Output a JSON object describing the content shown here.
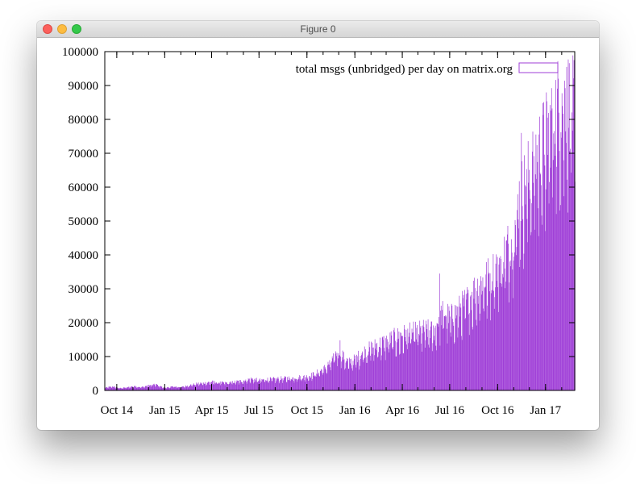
{
  "window": {
    "title": "Figure 0",
    "buttons": {
      "close": "close-button",
      "minimize": "minimize-button",
      "zoom": "zoom-button"
    }
  },
  "colors": {
    "series": "#9f3ed7",
    "axis": "#000000"
  },
  "chart_data": {
    "type": "bar",
    "title": "",
    "xlabel": "",
    "ylabel": "",
    "xlim": [
      "2014-09-08",
      "2017-02-26"
    ],
    "ylim": [
      0,
      100000
    ],
    "grid": false,
    "legend_position": "top-right",
    "x_ticks": [
      {
        "date": "2014-10-01",
        "label": "Oct 14"
      },
      {
        "date": "2015-01-01",
        "label": "Jan 15"
      },
      {
        "date": "2015-04-01",
        "label": "Apr 15"
      },
      {
        "date": "2015-07-01",
        "label": "Jul 15"
      },
      {
        "date": "2015-10-01",
        "label": "Oct 15"
      },
      {
        "date": "2016-01-01",
        "label": "Jan 16"
      },
      {
        "date": "2016-04-01",
        "label": "Apr 16"
      },
      {
        "date": "2016-07-01",
        "label": "Jul 16"
      },
      {
        "date": "2016-10-01",
        "label": "Oct 16"
      },
      {
        "date": "2017-01-01",
        "label": "Jan 17"
      }
    ],
    "y_ticks": [
      0,
      10000,
      20000,
      30000,
      40000,
      50000,
      60000,
      70000,
      80000,
      90000,
      100000
    ],
    "y_tick_labels": [
      "0",
      "10000",
      "20000",
      "30000",
      "40000",
      "50000",
      "60000",
      "70000",
      "80000",
      "90000",
      "100000"
    ],
    "series": [
      {
        "name": "total msgs (unbridged) per day on matrix.org",
        "color": "#9f3ed7",
        "points": [
          [
            "2014-09-08",
            800
          ],
          [
            "2014-09-22",
            1200
          ],
          [
            "2014-10-06",
            700
          ],
          [
            "2014-10-20",
            900
          ],
          [
            "2014-11-03",
            1300
          ],
          [
            "2014-11-17",
            1000
          ],
          [
            "2014-12-01",
            1500
          ],
          [
            "2014-12-15",
            1800
          ],
          [
            "2015-01-01",
            700
          ],
          [
            "2015-01-15",
            1200
          ],
          [
            "2015-02-01",
            1000
          ],
          [
            "2015-02-15",
            1500
          ],
          [
            "2015-03-01",
            2000
          ],
          [
            "2015-03-15",
            2200
          ],
          [
            "2015-04-01",
            2600
          ],
          [
            "2015-04-15",
            2400
          ],
          [
            "2015-05-01",
            2300
          ],
          [
            "2015-05-15",
            2600
          ],
          [
            "2015-06-01",
            3000
          ],
          [
            "2015-06-15",
            3500
          ],
          [
            "2015-07-01",
            3100
          ],
          [
            "2015-07-15",
            3400
          ],
          [
            "2015-08-01",
            3500
          ],
          [
            "2015-08-15",
            3700
          ],
          [
            "2015-09-01",
            3800
          ],
          [
            "2015-09-15",
            4000
          ],
          [
            "2015-10-01",
            4200
          ],
          [
            "2015-10-15",
            5000
          ],
          [
            "2015-11-01",
            6500
          ],
          [
            "2015-11-15",
            8500
          ],
          [
            "2015-12-01",
            12500
          ],
          [
            "2015-12-10",
            10000
          ],
          [
            "2015-12-20",
            8500
          ],
          [
            "2016-01-01",
            9500
          ],
          [
            "2016-01-15",
            11500
          ],
          [
            "2016-02-01",
            13000
          ],
          [
            "2016-02-15",
            14000
          ],
          [
            "2016-03-01",
            15000
          ],
          [
            "2016-03-15",
            16000
          ],
          [
            "2016-04-01",
            17000
          ],
          [
            "2016-04-15",
            17500
          ],
          [
            "2016-05-01",
            18000
          ],
          [
            "2016-05-15",
            18500
          ],
          [
            "2016-06-01",
            18000
          ],
          [
            "2016-06-10",
            22000
          ],
          [
            "2016-06-20",
            24000
          ],
          [
            "2016-07-01",
            22000
          ],
          [
            "2016-07-15",
            24000
          ],
          [
            "2016-08-01",
            27000
          ],
          [
            "2016-08-15",
            30000
          ],
          [
            "2016-09-01",
            33000
          ],
          [
            "2016-09-15",
            35000
          ],
          [
            "2016-10-01",
            38000
          ],
          [
            "2016-10-15",
            42000
          ],
          [
            "2016-11-01",
            48000
          ],
          [
            "2016-11-10",
            58000
          ],
          [
            "2016-11-20",
            62000
          ],
          [
            "2016-12-01",
            66000
          ],
          [
            "2016-12-15",
            72000
          ],
          [
            "2017-01-01",
            77000
          ],
          [
            "2017-01-15",
            84000
          ],
          [
            "2017-02-01",
            89000
          ],
          [
            "2017-02-15",
            88000
          ],
          [
            "2017-02-26",
            85000
          ]
        ],
        "peaks": [
          [
            "2015-12-03",
            14800
          ],
          [
            "2016-06-11",
            34500
          ],
          [
            "2016-11-15",
            76000
          ],
          [
            "2017-02-10",
            95500
          ],
          [
            "2017-01-25",
            92000
          ]
        ]
      }
    ]
  }
}
